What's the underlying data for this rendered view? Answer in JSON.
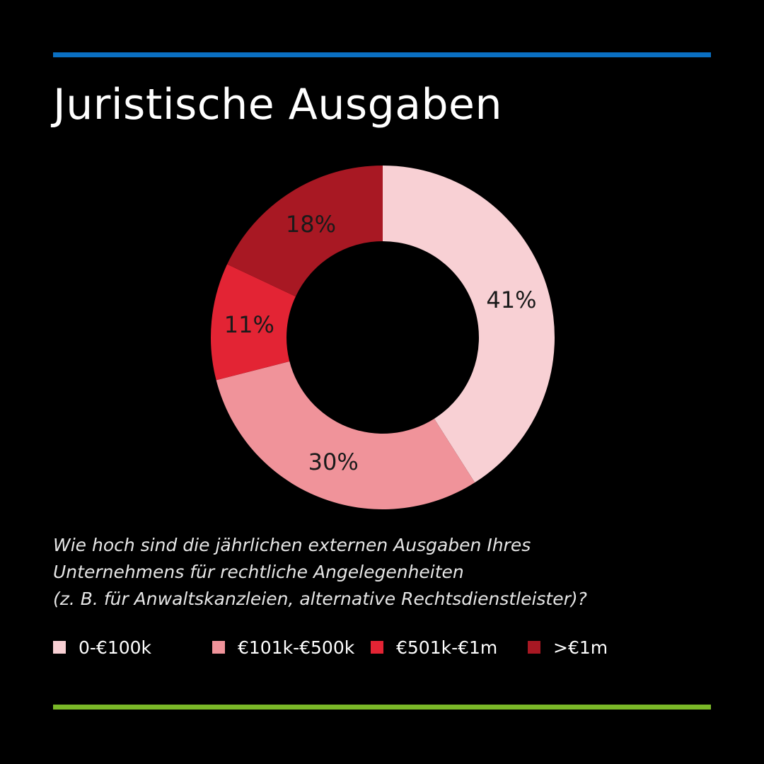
{
  "title": "Juristische Ausgaben",
  "colors": {
    "background": "#000000",
    "top_rule": "#0a6fc2",
    "bottom_rule": "#7ab828",
    "label_text": "#1a1a1a"
  },
  "question": {
    "line1": "Wie hoch sind die jährlichen externen Ausgaben Ihres",
    "line2": "Unternehmens für rechtliche Angelegenheiten",
    "line3": "(z. B. für Anwaltskanzleien, alternative Rechtsdienstleister)?"
  },
  "chart_data": {
    "type": "pie",
    "variant": "donut",
    "title": "Juristische Ausgaben",
    "start": "12 o'clock, clockwise",
    "legend_position": "bottom",
    "slices": [
      {
        "label": "0-€100k",
        "value": 41,
        "display": "41%",
        "color": "#f8d0d4"
      },
      {
        "label": "€101k-€500k",
        "value": 30,
        "display": "30%",
        "color": "#f0939a"
      },
      {
        "label": "€501k-€1m",
        "value": 11,
        "display": "11%",
        "color": "#e32434"
      },
      {
        "label": ">€1m",
        "value": 18,
        "display": "18%",
        "color": "#a81823"
      }
    ]
  }
}
